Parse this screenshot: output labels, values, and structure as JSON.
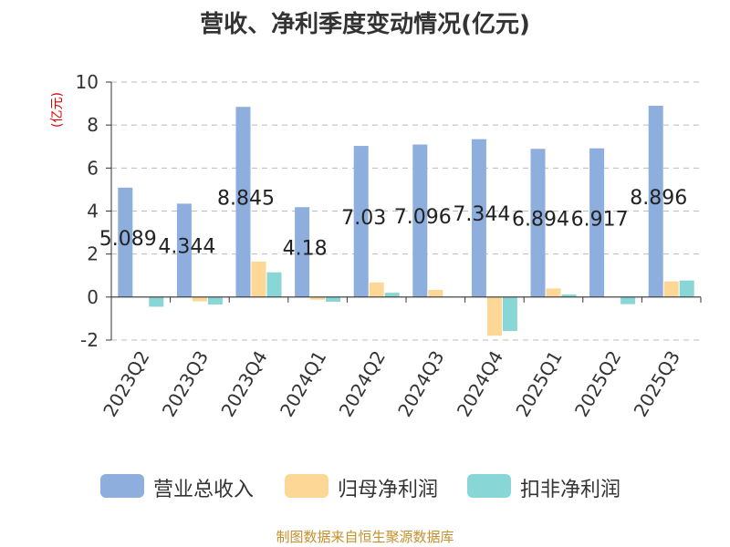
{
  "title": "营收、净利季度变动情况(亿元)",
  "unit_label": "(亿元)",
  "source": "制图数据来自恒生聚源数据库",
  "colors": {
    "revenue": "#8eaedd",
    "parent_profit": "#fdd795",
    "deducted_profit": "#88d7d6",
    "grid": "#bbbbbb",
    "axis": "#333333",
    "unit": "#e00000",
    "source": "#c4902c"
  },
  "chart_data": {
    "type": "bar",
    "title": "营收、净利季度变动情况(亿元)",
    "ylabel": "(亿元)",
    "xlabel": "",
    "ylim": [
      -2,
      10
    ],
    "yticks": [
      -2,
      0,
      2,
      4,
      6,
      8,
      10
    ],
    "grid": true,
    "legend_position": "bottom",
    "categories": [
      "2023Q2",
      "2023Q3",
      "2023Q4",
      "2024Q1",
      "2024Q2",
      "2024Q3",
      "2024Q4",
      "2025Q1",
      "2025Q2",
      "2025Q3"
    ],
    "series": [
      {
        "name": "营业总收入",
        "color": "#8eaedd",
        "values": [
          5.089,
          4.344,
          8.845,
          4.18,
          7.03,
          7.096,
          7.344,
          6.894,
          6.917,
          8.896
        ],
        "labels": [
          "5.089",
          "4.344",
          "8.845",
          "4.18",
          "7.03",
          "7.096",
          "7.344",
          "6.894",
          "6.917",
          "8.896"
        ]
      },
      {
        "name": "归母净利润",
        "color": "#fdd795",
        "values": [
          0.0,
          -0.2,
          1.65,
          -0.12,
          0.68,
          0.33,
          -1.8,
          0.4,
          0.02,
          0.73
        ]
      },
      {
        "name": "扣非净利润",
        "color": "#88d7d6",
        "values": [
          -0.45,
          -0.35,
          1.15,
          -0.22,
          0.2,
          0.02,
          -1.58,
          0.12,
          -0.33,
          0.77
        ]
      }
    ]
  }
}
